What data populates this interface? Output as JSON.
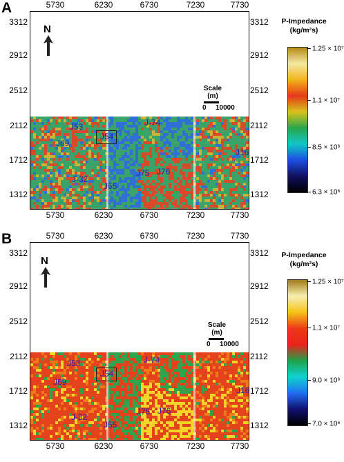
{
  "panels": [
    {
      "letter": "A",
      "x_ticks": [
        "5730",
        "6230",
        "6730",
        "7230",
        "7730"
      ],
      "y_ticks": [
        "3312",
        "2912",
        "2512",
        "2112",
        "1712",
        "1312"
      ],
      "north": "N",
      "scale": {
        "title": "Scale",
        "unit": "(m)",
        "start": "0",
        "end": "10000"
      },
      "wells": [
        "J53",
        "J54",
        "J-74",
        "J69",
        "J16",
        "J-32",
        "J75",
        "J76",
        "J55"
      ],
      "colorbar": {
        "title_line1": "P-Impedance",
        "title_line2": "(kg/m²s)",
        "labels": [
          "1.25 × 10⁷",
          "1.1 × 10⁷",
          "8.5 × 10⁶",
          "6.3 × 10⁶"
        ],
        "gradient": [
          "#b58a1a",
          "#f4e9a0",
          "#f3b21c",
          "#e33a18",
          "#d8c31e",
          "#2aa64a",
          "#12c6c8",
          "#1c4ee0",
          "#101060",
          "#000000"
        ]
      },
      "map_palette": {
        "base": "#3aa36a",
        "hot": "#d94a2a",
        "cool": "#2f6fd6",
        "warm": "#c9b43a"
      }
    },
    {
      "letter": "B",
      "x_ticks": [
        "5730",
        "6230",
        "6730",
        "7230",
        "7730"
      ],
      "y_ticks": [
        "3312",
        "2912",
        "2512",
        "2112",
        "1712",
        "1312"
      ],
      "north": "N",
      "scale": {
        "title": "Scale",
        "unit": "(m)",
        "start": "0",
        "end": "10000"
      },
      "wells": [
        "J53",
        "J54",
        "J-74",
        "J69",
        "J16",
        "J-32",
        "J75",
        "J76",
        "J55"
      ],
      "colorbar": {
        "title_line1": "P-Impedance",
        "title_line2": "(kg/m²s)",
        "labels": [
          "1.25 × 10⁷",
          "1.1 × 10⁷",
          "9.0 × 10⁶",
          "7.0 × 10⁶"
        ],
        "gradient": [
          "#a27b18",
          "#f6efb0",
          "#f6c21a",
          "#ec3a16",
          "#e8231a",
          "#1fa24a",
          "#11d2d2",
          "#1f6ff0",
          "#101070",
          "#000000"
        ]
      },
      "map_palette": {
        "base": "#e3421c",
        "hot": "#f3d52a",
        "cool": "#2fa34d",
        "warm": "#ee7a1a"
      }
    }
  ]
}
